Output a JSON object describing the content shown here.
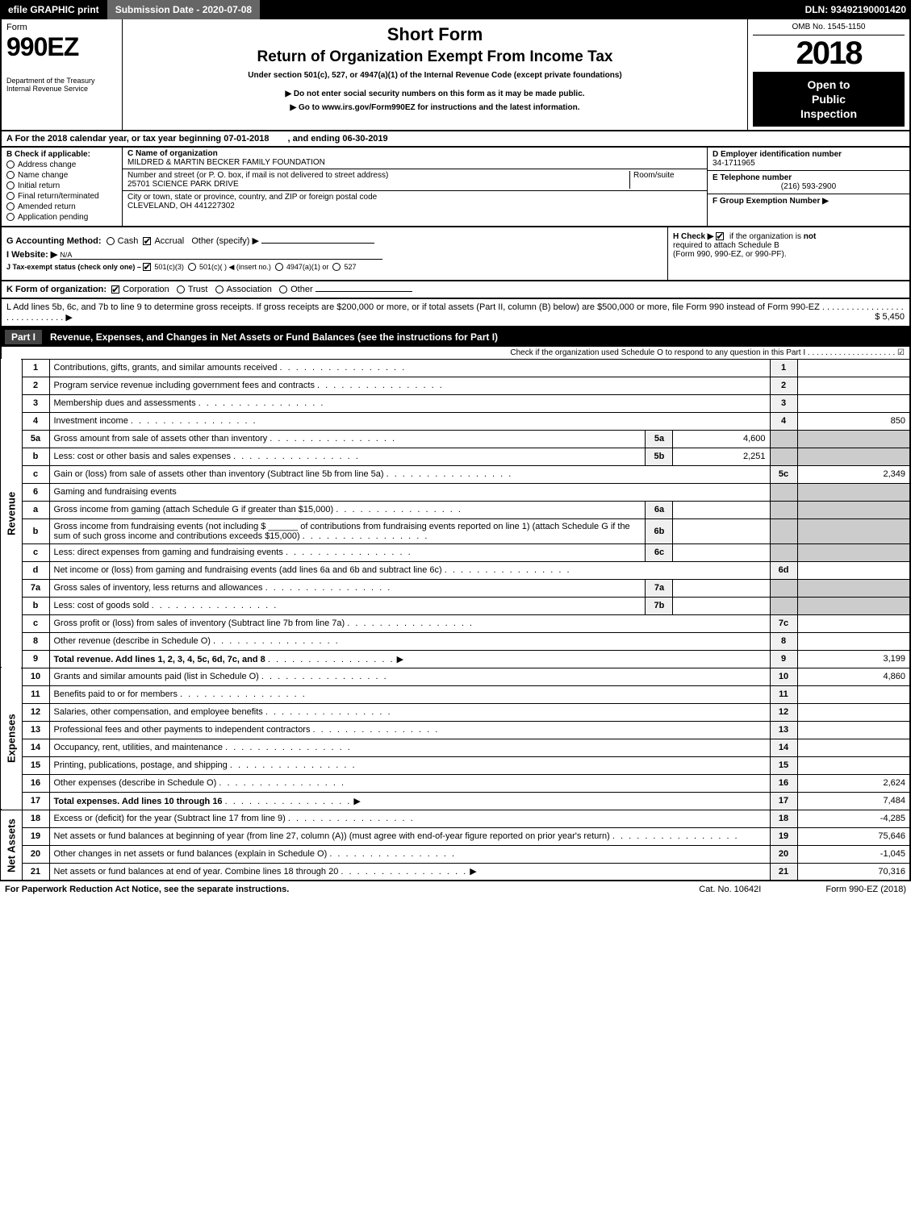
{
  "topbar": {
    "efile": "efile GRAPHIC print",
    "submission": "Submission Date - 2020-07-08",
    "dln": "DLN: 93492190001420"
  },
  "header": {
    "form_word": "Form",
    "form_number": "990EZ",
    "dept": "Department of the Treasury",
    "irs": "Internal Revenue Service",
    "short_form": "Short Form",
    "title": "Return of Organization Exempt From Income Tax",
    "under": "Under section 501(c), 527, or 4947(a)(1) of the Internal Revenue Code (except private foundations)",
    "warn": "▶ Do not enter social security numbers on this form as it may be made public.",
    "goto": "▶ Go to www.irs.gov/Form990EZ for instructions and the latest information.",
    "omb": "OMB No. 1545-1150",
    "year": "2018",
    "open1": "Open to",
    "open2": "Public",
    "open3": "Inspection"
  },
  "row_a": {
    "prefix": "A For the 2018 calendar year, or tax year beginning",
    "begin": "07-01-2018",
    "ending_lbl": ", and ending",
    "end": "06-30-2019"
  },
  "col_b": {
    "head": "B Check if applicable:",
    "items": [
      "Address change",
      "Name change",
      "Initial return",
      "Final return/terminated",
      "Amended return",
      "Application pending"
    ]
  },
  "col_c": {
    "name_lbl": "C Name of organization",
    "name": "MILDRED & MARTIN BECKER FAMILY FOUNDATION",
    "street_lbl": "Number and street (or P. O. box, if mail is not delivered to street address)",
    "street": "25701 SCIENCE PARK DRIVE",
    "room_lbl": "Room/suite",
    "city_lbl": "City or town, state or province, country, and ZIP or foreign postal code",
    "city": "CLEVELAND, OH  441227302"
  },
  "col_def": {
    "d_lbl": "D Employer identification number",
    "d_val": "34-1711965",
    "e_lbl": "E Telephone number",
    "e_val": "(216) 593-2900",
    "f_lbl": "F Group Exemption Number  ▶",
    "f_val": ""
  },
  "ghij": {
    "g": "G Accounting Method:",
    "g_cash": "Cash",
    "g_accrual": "Accrual",
    "g_other": "Other (specify) ▶",
    "i_lbl": "I Website: ▶",
    "i_val": "N/A",
    "j": "J Tax-exempt status (check only one) –",
    "j_501c3": "501(c)(3)",
    "j_501c": "501(c)(   ) ◀ (insert no.)",
    "j_4947": "4947(a)(1) or",
    "j_527": "527",
    "h": "H Check ▶",
    "h_txt1": "if the organization is",
    "h_not": "not",
    "h_txt2": "required to attach Schedule B",
    "h_txt3": "(Form 990, 990-EZ, or 990-PF)."
  },
  "line_k": {
    "lbl": "K Form of organization:",
    "corp": "Corporation",
    "trust": "Trust",
    "assoc": "Association",
    "other": "Other"
  },
  "line_l": {
    "txt": "L Add lines 5b, 6c, and 7b to line 9 to determine gross receipts. If gross receipts are $200,000 or more, or if total assets (Part II, column (B) below) are $500,000 or more, file Form 990 instead of Form 990-EZ  .  .  .  .  .  .  .  .  .  .  .  .  .  .  .  .  .  .  .  .  .  .  .  .  .  .  .  .  .  ▶",
    "amt": "$ 5,450"
  },
  "part1": {
    "name": "Part I",
    "title": "Revenue, Expenses, and Changes in Net Assets or Fund Balances (see the instructions for Part I)",
    "sched_o": "Check if the organization used Schedule O to respond to any question in this Part I  .  .  .  .  .  .  .  .  .  .  .  .  .  .  .  .  .  .  .  .  ☑"
  },
  "side_labels": {
    "revenue": "Revenue",
    "expenses": "Expenses",
    "net": "Net Assets"
  },
  "lines": [
    {
      "num": "1",
      "desc": "Contributions, gifts, grants, and similar amounts received",
      "rnum": "1",
      "rval": ""
    },
    {
      "num": "2",
      "desc": "Program service revenue including government fees and contracts",
      "rnum": "2",
      "rval": ""
    },
    {
      "num": "3",
      "desc": "Membership dues and assessments",
      "rnum": "3",
      "rval": ""
    },
    {
      "num": "4",
      "desc": "Investment income",
      "rnum": "4",
      "rval": "850"
    },
    {
      "num": "5a",
      "desc": "Gross amount from sale of assets other than inventory",
      "sublbl": "5a",
      "subval": "4,600"
    },
    {
      "num": "b",
      "desc": "Less: cost or other basis and sales expenses",
      "sublbl": "5b",
      "subval": "2,251"
    },
    {
      "num": "c",
      "desc": "Gain or (loss) from sale of assets other than inventory (Subtract line 5b from line 5a)",
      "rnum": "5c",
      "rval": "2,349"
    },
    {
      "num": "6",
      "desc": "Gaming and fundraising events",
      "plain": true
    },
    {
      "num": "a",
      "desc": "Gross income from gaming (attach Schedule G if greater than $15,000)",
      "sublbl": "6a",
      "subval": ""
    },
    {
      "num": "b",
      "desc": "Gross income from fundraising events (not including $ ______ of contributions from fundraising events reported on line 1) (attach Schedule G if the sum of such gross income and contributions exceeds $15,000)",
      "sublbl": "6b",
      "subval": ""
    },
    {
      "num": "c",
      "desc": "Less: direct expenses from gaming and fundraising events",
      "sublbl": "6c",
      "subval": ""
    },
    {
      "num": "d",
      "desc": "Net income or (loss) from gaming and fundraising events (add lines 6a and 6b and subtract line 6c)",
      "rnum": "6d",
      "rval": ""
    },
    {
      "num": "7a",
      "desc": "Gross sales of inventory, less returns and allowances",
      "sublbl": "7a",
      "subval": ""
    },
    {
      "num": "b",
      "desc": "Less: cost of goods sold",
      "sublbl": "7b",
      "subval": ""
    },
    {
      "num": "c",
      "desc": "Gross profit or (loss) from sales of inventory (Subtract line 7b from line 7a)",
      "rnum": "7c",
      "rval": ""
    },
    {
      "num": "8",
      "desc": "Other revenue (describe in Schedule O)",
      "rnum": "8",
      "rval": ""
    },
    {
      "num": "9",
      "desc": "Total revenue. Add lines 1, 2, 3, 4, 5c, 6d, 7c, and 8",
      "rnum": "9",
      "rval": "3,199",
      "bold": true,
      "arrow": true
    },
    {
      "num": "10",
      "desc": "Grants and similar amounts paid (list in Schedule O)",
      "rnum": "10",
      "rval": "4,860"
    },
    {
      "num": "11",
      "desc": "Benefits paid to or for members",
      "rnum": "11",
      "rval": ""
    },
    {
      "num": "12",
      "desc": "Salaries, other compensation, and employee benefits",
      "rnum": "12",
      "rval": ""
    },
    {
      "num": "13",
      "desc": "Professional fees and other payments to independent contractors",
      "rnum": "13",
      "rval": ""
    },
    {
      "num": "14",
      "desc": "Occupancy, rent, utilities, and maintenance",
      "rnum": "14",
      "rval": ""
    },
    {
      "num": "15",
      "desc": "Printing, publications, postage, and shipping",
      "rnum": "15",
      "rval": ""
    },
    {
      "num": "16",
      "desc": "Other expenses (describe in Schedule O)",
      "rnum": "16",
      "rval": "2,624"
    },
    {
      "num": "17",
      "desc": "Total expenses. Add lines 10 through 16",
      "rnum": "17",
      "rval": "7,484",
      "bold": true,
      "arrow": true
    },
    {
      "num": "18",
      "desc": "Excess or (deficit) for the year (Subtract line 17 from line 9)",
      "rnum": "18",
      "rval": "-4,285"
    },
    {
      "num": "19",
      "desc": "Net assets or fund balances at beginning of year (from line 27, column (A)) (must agree with end-of-year figure reported on prior year's return)",
      "rnum": "19",
      "rval": "75,646"
    },
    {
      "num": "20",
      "desc": "Other changes in net assets or fund balances (explain in Schedule O)",
      "rnum": "20",
      "rval": "-1,045"
    },
    {
      "num": "21",
      "desc": "Net assets or fund balances at end of year. Combine lines 18 through 20",
      "rnum": "21",
      "rval": "70,316",
      "arrow": true
    }
  ],
  "footer": {
    "left": "For Paperwork Reduction Act Notice, see the separate instructions.",
    "mid": "Cat. No. 10642I",
    "right": "Form 990-EZ (2018)"
  },
  "colors": {
    "black": "#000000",
    "darkgray": "#666666",
    "shade": "#cccccc",
    "lightshade": "#f0f0f0"
  }
}
